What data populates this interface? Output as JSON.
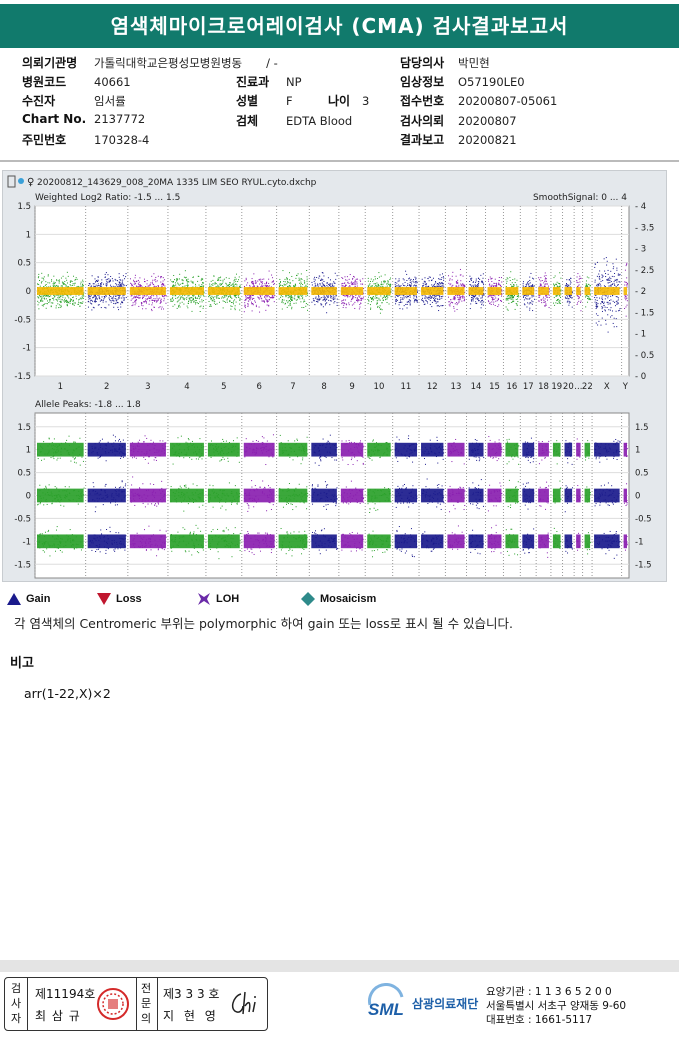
{
  "title": "염색체마이크로어레이검사 (CMA) 검사결과보고서",
  "info": {
    "institution_label": "의뢰기관명",
    "institution": "가톨릭대학교은평성모병원병동",
    "ward": "/ -",
    "hospital_code_label": "병원코드",
    "hospital_code": "40661",
    "department_label": "진료과",
    "department": "NP",
    "patient_label": "수진자",
    "patient": "임서률",
    "sex_label": "성별",
    "sex": "F",
    "age_label": "나이",
    "age": "3",
    "chart_label": "Chart No.",
    "chart_no": "2137772",
    "specimen_label": "검체",
    "specimen": "EDTA Blood",
    "id_label": "주민번호",
    "id_no": "170328-4",
    "doctor_label": "담당의사",
    "doctor": "박민현",
    "clinical_label": "임상정보",
    "clinical": "O57190LE0",
    "receipt_label": "접수번호",
    "receipt": "20200807-05061",
    "request_label": "검사의뢰",
    "request_date": "20200807",
    "report_label": "결과보고",
    "report_date": "20200821"
  },
  "chart_data": {
    "type": "scatter",
    "file_name": "20200812_143629_008_20MA 1335 LIM SEO RYUL.cyto.dxchp",
    "top_panel": {
      "label": "Weighted Log2 Ratio: -1.5 ... 1.5",
      "right_label": "SmoothSignal: 0 ... 4",
      "ylim": [
        -1.5,
        1.5
      ],
      "left_ticks": [
        "1.5",
        "1",
        "0.5",
        "0",
        "-0.5",
        "-1",
        "-1.5"
      ],
      "right_ticks": [
        "4",
        "3.5",
        "3",
        "2.5",
        "2",
        "1.5",
        "1",
        "0.5",
        "0"
      ]
    },
    "bottom_panel": {
      "label": "Allele Peaks: -1.8 ... 1.8",
      "ylim": [
        -1.8,
        1.8
      ],
      "left_ticks": [
        "1.5",
        "1",
        "0.5",
        "0",
        "-0.5",
        "-1",
        "-1.5"
      ],
      "right_ticks": [
        "1.5",
        "1",
        "0.5",
        "0",
        "-0.5",
        "-1",
        "-1.5"
      ]
    },
    "chromosomes": [
      "1",
      "2",
      "3",
      "4",
      "5",
      "6",
      "7",
      "8",
      "9",
      "10",
      "11",
      "12",
      "13",
      "14",
      "15",
      "16",
      "17",
      "18",
      "19",
      "20",
      "21",
      "22",
      "X",
      "Y"
    ],
    "x_labels": [
      "1",
      "2",
      "3",
      "4",
      "5",
      "6",
      "7",
      "8",
      "9",
      "10",
      "11",
      "12",
      "13",
      "14",
      "15",
      "16",
      "17",
      "18",
      "19",
      "20",
      "...",
      "22",
      "X",
      "Y"
    ],
    "chromosome_colors": [
      "green",
      "navy",
      "purple",
      "green",
      "green",
      "purple",
      "green",
      "navy",
      "purple",
      "green",
      "navy",
      "navy",
      "purple",
      "navy",
      "purple",
      "green",
      "navy",
      "purple",
      "green",
      "navy",
      "purple",
      "green",
      "navy",
      "purple"
    ],
    "colors": {
      "green": "#2aa12a",
      "navy": "#1a1a8c",
      "purple": "#8a1fb0",
      "smooth": "#f5b800"
    }
  },
  "legend": {
    "gain": "Gain",
    "loss": "Loss",
    "loh": "LOH",
    "mosaicism": "Mosaicism"
  },
  "note": "각 염색체의 Centromeric 부위는 polymorphic 하여 gain 또는 loss로 표시 될 수 있습니다.",
  "remark_heading": "비고",
  "remark": "arr(1-22,X)×2",
  "footer": {
    "v1": "검",
    "v2": "사",
    "v3": "자",
    "examiner_no": "제11194호",
    "examiner_name": "최 삼 규",
    "s1": "전",
    "s2": "문",
    "s3": "의",
    "specialist_no": "제3 3 3 호",
    "specialist_name": "지 현 영",
    "logo": "SML",
    "company": "삼광의료재단",
    "line1": "요양기관 : 1 1 3 6 5 2 0 0",
    "line2": "서울특별시 서초구 양재동 9-60",
    "line3": "대표번호 : 1661-5117"
  }
}
